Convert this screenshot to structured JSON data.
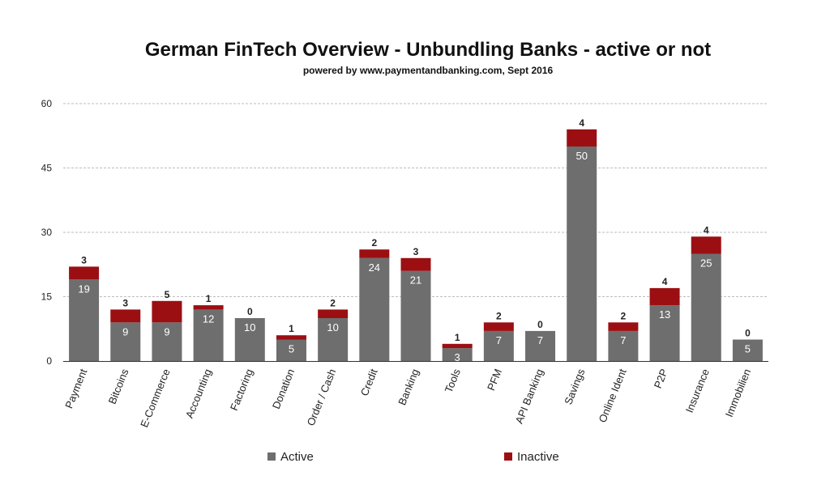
{
  "colors": {
    "active": "#6e6e6e",
    "inactive": "#9b0f13",
    "grid": "#bdbdbd",
    "axis": "#333333"
  },
  "chart_data": {
    "type": "bar",
    "stacked": true,
    "title": "German FinTech Overview - Unbundling Banks - active or not",
    "subtitle": "powered by www.paymentandbanking.com, Sept 2016",
    "categories": [
      "Payment",
      "Bitcoins",
      "E-Commerce",
      "Accounting",
      "Factoring",
      "Donation",
      "Order / Cash",
      "Credit",
      "Banking",
      "Tools",
      "PFM",
      "API Banking",
      "Savings",
      "Online Ident",
      "P2P",
      "Insurance",
      "Immobilien"
    ],
    "series": [
      {
        "name": "Active",
        "values": [
          19,
          9,
          9,
          12,
          10,
          5,
          10,
          24,
          21,
          3,
          7,
          7,
          50,
          7,
          13,
          25,
          5
        ]
      },
      {
        "name": "Inactive",
        "values": [
          3,
          3,
          5,
          1,
          0,
          1,
          2,
          2,
          3,
          1,
          2,
          0,
          4,
          2,
          4,
          4,
          0
        ]
      }
    ],
    "ylim": [
      0,
      60
    ],
    "yticks": [
      0,
      15,
      30,
      45,
      60
    ],
    "grid": true,
    "legend": "bottom"
  }
}
